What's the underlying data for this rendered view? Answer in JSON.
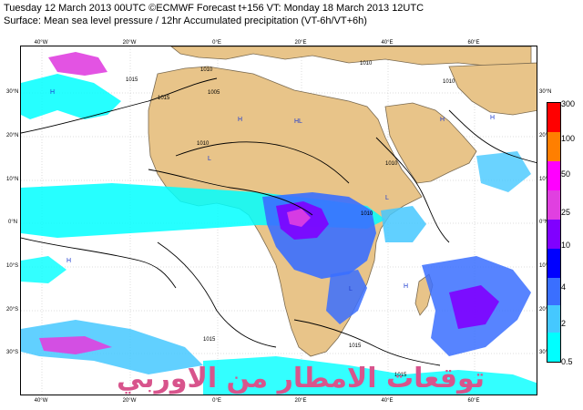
{
  "header": {
    "line1": "Tuesday 12 March 2013 00UTC ©ECMWF Forecast t+156 VT: Monday 18 March 2013 12UTC",
    "line2": "Surface: Mean sea level pressure / 12hr Accumulated precipitation (VT-6h/VT+6h)"
  },
  "map": {
    "lon_labels": [
      "40°W",
      "20°W",
      "0°E",
      "20°E",
      "40°E",
      "60°E"
    ],
    "lat_labels_left": [
      "30°N",
      "20°N",
      "10°N",
      "0°N",
      "10°S",
      "20°S",
      "30°S"
    ],
    "lat_labels_right": [
      "30°N",
      "20°N",
      "10°N",
      "0°N",
      "10°S",
      "20°S",
      "30°S"
    ],
    "isobar_labels": [
      "1015",
      "1010",
      "1005",
      "1010",
      "1015",
      "1010",
      "1010",
      "1015",
      "1015",
      "1010",
      "1015",
      "1010"
    ],
    "pressure_centers": [
      "H",
      "H",
      "H",
      "HL",
      "L",
      "L",
      "H",
      "H",
      "H",
      "L"
    ],
    "colors": {
      "land": "#e8c489",
      "ocean": "#ffffff",
      "coast": "#7a6a50",
      "isobar": "#000000"
    }
  },
  "legend": {
    "labels": [
      "300",
      "100",
      "50",
      "25",
      "10",
      "4",
      "2",
      "0.5"
    ],
    "colors": [
      "#ff0000",
      "#ff7f00",
      "#ff00ff",
      "#e040e0",
      "#8000ff",
      "#0000ff",
      "#3a6fff",
      "#45c8ff",
      "#00ffff"
    ]
  },
  "watermark": {
    "text": "توقعات الامطار من الاوربي",
    "color": "#d8548c"
  }
}
